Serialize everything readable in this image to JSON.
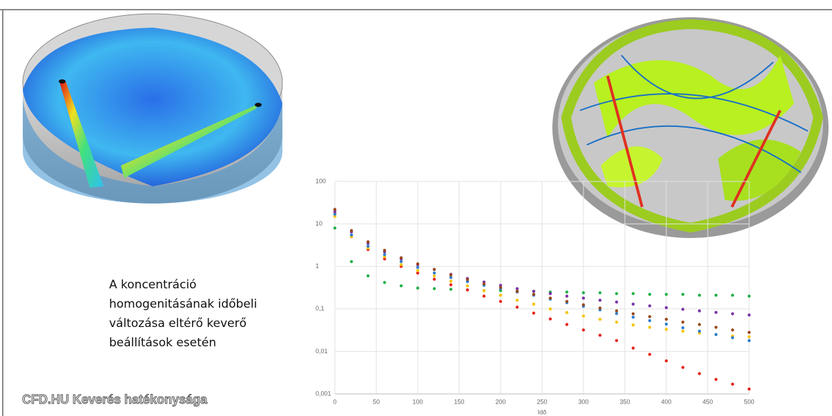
{
  "description": [
    "A koncentráció",
    "homogenitásának időbeli",
    "változása eltérő keverő",
    "beállítások esetén"
  ],
  "caption": "CFD.HU Keverés hatékonysága",
  "chart_data": {
    "type": "scatter",
    "x_label": "Idő",
    "x": [
      0,
      20,
      40,
      60,
      80,
      100,
      120,
      140,
      160,
      180,
      200,
      220,
      240,
      260,
      280,
      300,
      320,
      340,
      360,
      380,
      400,
      420,
      440,
      460,
      480,
      500
    ],
    "xlim": [
      0,
      500
    ],
    "xticks": [
      0,
      50,
      100,
      150,
      200,
      250,
      300,
      350,
      400,
      450,
      500
    ],
    "ylim": [
      0.001,
      100
    ],
    "yticks": [
      {
        "value": 0.001,
        "label": "0,001"
      },
      {
        "value": 0.01,
        "label": "0,01"
      },
      {
        "value": 0.1,
        "label": "0,1"
      },
      1,
      10,
      100
    ],
    "log_y": true,
    "grid": true,
    "series": [
      {
        "color": "#22b04a",
        "values": [
          8,
          1.3,
          0.6,
          0.42,
          0.35,
          0.31,
          0.3,
          0.29,
          0.28,
          0.27,
          0.27,
          0.26,
          0.26,
          0.25,
          0.25,
          0.24,
          0.24,
          0.23,
          0.23,
          0.22,
          0.22,
          0.22,
          0.21,
          0.21,
          0.21,
          0.2
        ]
      },
      {
        "color": "#e8231e",
        "values": [
          18,
          5,
          2.5,
          1.5,
          1,
          0.7,
          0.5,
          0.37,
          0.28,
          0.2,
          0.15,
          0.11,
          0.08,
          0.058,
          0.043,
          0.032,
          0.024,
          0.018,
          0.012,
          0.0085,
          0.006,
          0.0042,
          0.003,
          0.0022,
          0.0017,
          0.0013
        ]
      },
      {
        "color": "#f5c400",
        "values": [
          15,
          5,
          2.7,
          1.7,
          1.1,
          0.8,
          0.6,
          0.45,
          0.35,
          0.27,
          0.21,
          0.16,
          0.13,
          0.1,
          0.082,
          0.068,
          0.057,
          0.049,
          0.042,
          0.037,
          0.033,
          0.03,
          0.027,
          0.025,
          0.023,
          0.022
        ]
      },
      {
        "color": "#2f7fd0",
        "values": [
          17,
          5.5,
          3,
          1.9,
          1.3,
          0.95,
          0.7,
          0.55,
          0.44,
          0.36,
          0.3,
          0.25,
          0.21,
          0.17,
          0.14,
          0.115,
          0.095,
          0.078,
          0.064,
          0.053,
          0.044,
          0.036,
          0.03,
          0.025,
          0.021,
          0.018
        ]
      },
      {
        "color": "#7b35a8",
        "values": [
          20,
          6.5,
          3.5,
          2.2,
          1.5,
          1.1,
          0.85,
          0.65,
          0.52,
          0.43,
          0.36,
          0.3,
          0.26,
          0.23,
          0.2,
          0.18,
          0.16,
          0.145,
          0.13,
          0.118,
          0.107,
          0.098,
          0.09,
          0.083,
          0.077,
          0.072
        ]
      },
      {
        "color": "#9a4a1c",
        "values": [
          22,
          7,
          3.8,
          2.4,
          1.6,
          1.15,
          0.85,
          0.63,
          0.49,
          0.39,
          0.32,
          0.26,
          0.22,
          0.18,
          0.15,
          0.125,
          0.105,
          0.09,
          0.077,
          0.066,
          0.057,
          0.049,
          0.043,
          0.037,
          0.032,
          0.028
        ]
      }
    ]
  }
}
